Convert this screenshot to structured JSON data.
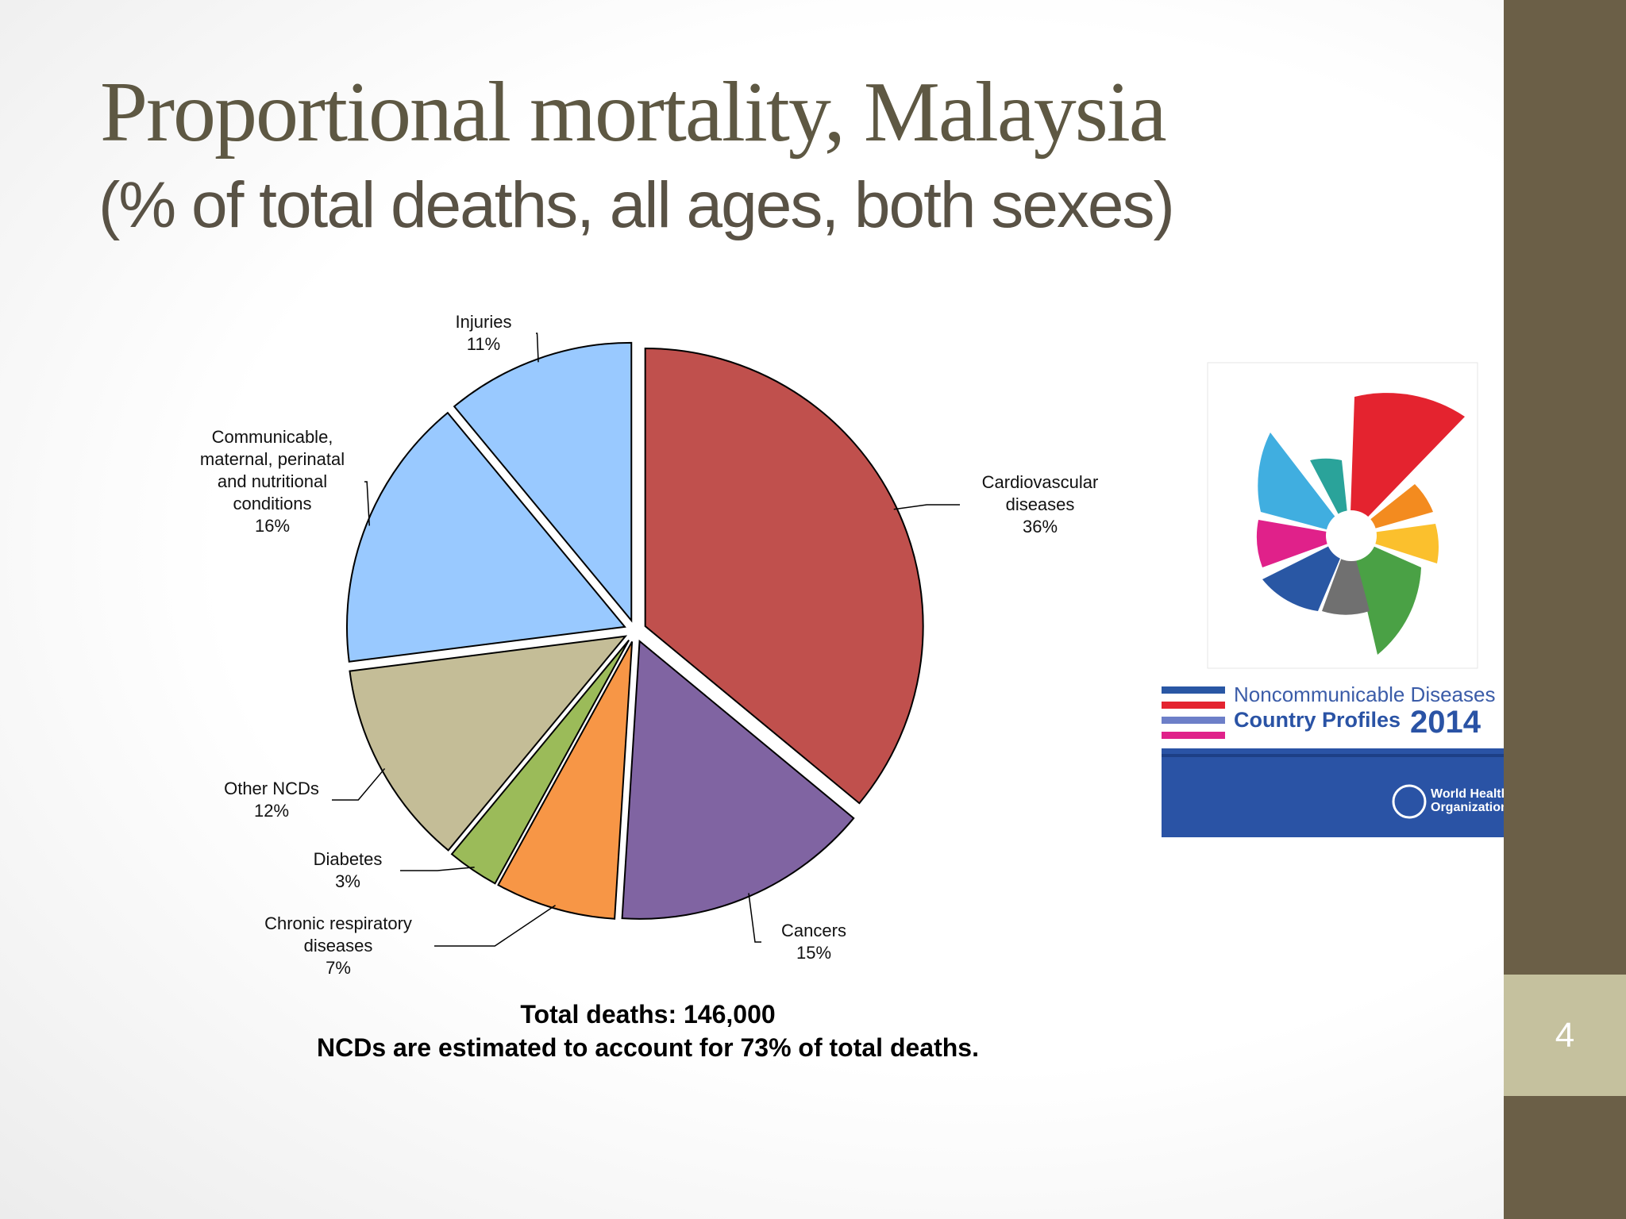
{
  "chart_data": {
    "type": "pie",
    "title": "Proportional mortality, Malaysia",
    "subtitle": "(% of total deaths, all ages, both sexes)",
    "categories": [
      "Cardiovascular diseases",
      "Cancers",
      "Chronic respiratory diseases",
      "Diabetes",
      "Other NCDs",
      "Communicable, maternal, perinatal and nutritional conditions",
      "Injuries"
    ],
    "values": [
      36,
      15,
      7,
      3,
      12,
      16,
      11
    ],
    "value_labels": [
      "36%",
      "15%",
      "7%",
      "3%",
      "12%",
      "16%",
      "11%"
    ],
    "colors": [
      "#c0504d",
      "#8064a2",
      "#f79646",
      "#9bbb59",
      "#c4bd97",
      "#99c9ff",
      "#99c9ff"
    ],
    "annotations": [
      "Total deaths: 146,000",
      "NCDs are estimated to account for 73% of total deaths."
    ]
  },
  "slide": {
    "page_number": "4",
    "report": {
      "line1": "Noncommunicable Diseases",
      "line2": "Country Profiles",
      "year": "2014",
      "publisher": "World Health Organization"
    }
  }
}
